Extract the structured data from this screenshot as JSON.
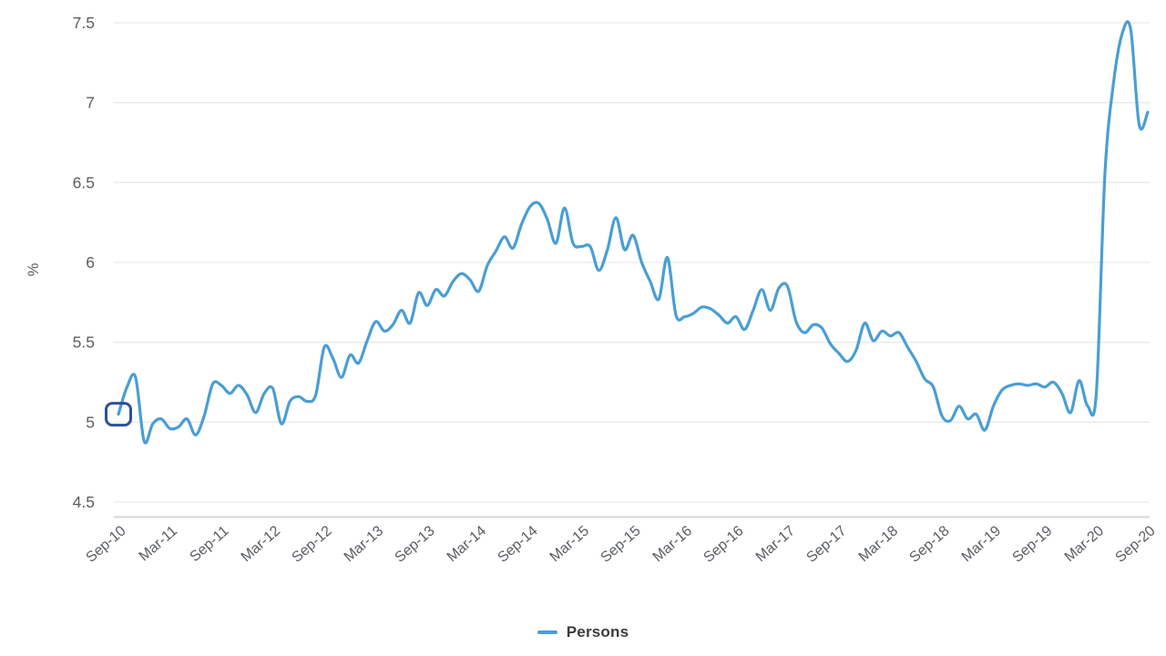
{
  "chart_data": {
    "type": "line",
    "title": "",
    "ylabel": "%",
    "xlabel": "",
    "ylim": [
      4.5,
      7.5
    ],
    "y_tick_labels": [
      "7.5",
      "7",
      "6.5",
      "6",
      "5.5",
      "5",
      "4.5"
    ],
    "y_tick_values": [
      7.5,
      7,
      6.5,
      6,
      5.5,
      5,
      4.5
    ],
    "x_tick_labels": [
      "Sep-10",
      "Mar-11",
      "Sep-11",
      "Mar-12",
      "Sep-12",
      "Mar-13",
      "Sep-13",
      "Mar-14",
      "Sep-14",
      "Mar-15",
      "Sep-15",
      "Mar-16",
      "Sep-16",
      "Mar-17",
      "Sep-17",
      "Mar-18",
      "Sep-18",
      "Mar-19",
      "Sep-19",
      "Mar-20",
      "Sep-20"
    ],
    "x_interval": "monthly",
    "x_ticks_every_n_points": 6,
    "grid": "horizontal",
    "legend_position": "bottom-center",
    "series": [
      {
        "name": "Persons",
        "start": "Sep-10",
        "end": "Sep-20",
        "values": [
          5.05,
          5.22,
          5.28,
          4.88,
          4.99,
          5.02,
          4.96,
          4.97,
          5.02,
          4.92,
          5.04,
          5.24,
          5.23,
          5.18,
          5.23,
          5.17,
          5.06,
          5.18,
          5.21,
          4.99,
          5.13,
          5.16,
          5.13,
          5.17,
          5.47,
          5.4,
          5.28,
          5.42,
          5.37,
          5.51,
          5.63,
          5.57,
          5.61,
          5.7,
          5.62,
          5.81,
          5.73,
          5.83,
          5.79,
          5.88,
          5.93,
          5.89,
          5.82,
          5.98,
          6.07,
          6.16,
          6.09,
          6.24,
          6.35,
          6.37,
          6.27,
          6.12,
          6.34,
          6.12,
          6.1,
          6.1,
          5.95,
          6.08,
          6.28,
          6.08,
          6.17,
          6.0,
          5.88,
          5.77,
          6.03,
          5.67,
          5.66,
          5.68,
          5.72,
          5.71,
          5.67,
          5.62,
          5.66,
          5.58,
          5.7,
          5.83,
          5.7,
          5.84,
          5.85,
          5.63,
          5.56,
          5.61,
          5.59,
          5.49,
          5.43,
          5.38,
          5.45,
          5.62,
          5.51,
          5.57,
          5.54,
          5.56,
          5.47,
          5.38,
          5.27,
          5.22,
          5.04,
          5.01,
          5.1,
          5.02,
          5.05,
          4.95,
          5.1,
          5.2,
          5.23,
          5.24,
          5.23,
          5.24,
          5.22,
          5.25,
          5.18,
          5.06,
          5.26,
          5.1,
          5.18,
          6.55,
          7.12,
          7.43,
          7.46,
          6.86,
          6.94
        ]
      }
    ],
    "first_point_marker": {
      "series": "Persons",
      "x": "Sep-10",
      "value": 5.05,
      "shape": "rounded-square-outline"
    }
  },
  "colors": {
    "line": "#4a9ed4",
    "marker_outline": "#2e4f9e",
    "grid": "#e9e9e9",
    "axis_line": "#d6d6d6",
    "tick_label": "#5a5e63",
    "legend_text": "#3b3b3b"
  }
}
